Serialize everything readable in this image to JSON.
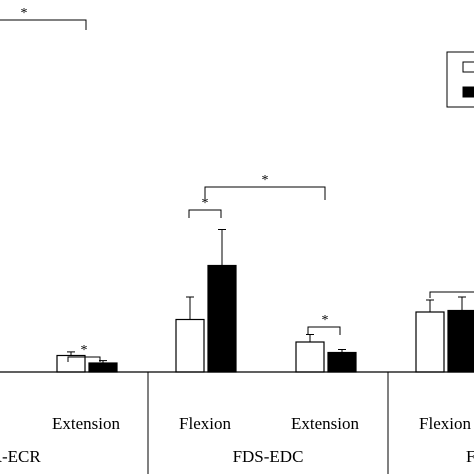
{
  "chart_data": {
    "type": "bar",
    "title": "",
    "xlabel": "",
    "ylabel": "",
    "ylim": [
      0,
      10
    ],
    "grid": false,
    "legend": {
      "placement": "top-right",
      "entries": [
        {
          "fill": "#ffffff",
          "label": ""
        },
        {
          "fill": "#000000",
          "label": ""
        }
      ]
    },
    "groups": [
      {
        "name": "CR-ECR",
        "categories": [
          {
            "name": "Extension",
            "values": [
              0.55,
              0.3
            ],
            "errors": [
              0.12,
              0.08
            ]
          }
        ]
      },
      {
        "name": "FDS-EDC",
        "categories": [
          {
            "name": "Flexion",
            "values": [
              1.75,
              3.55
            ],
            "errors": [
              0.75,
              1.2
            ]
          },
          {
            "name": "Extension",
            "values": [
              1.0,
              0.65
            ],
            "errors": [
              0.25,
              0.1
            ]
          }
        ]
      },
      {
        "name": "F",
        "categories": [
          {
            "name": "Flexion",
            "values": [
              2.0,
              2.05
            ],
            "errors": [
              0.4,
              0.45
            ]
          }
        ]
      }
    ],
    "series": [
      {
        "fill": "#ffffff",
        "values": [
          0.55,
          1.75,
          1.0,
          2.0
        ]
      },
      {
        "fill": "#000000",
        "values": [
          0.3,
          3.55,
          0.65,
          2.05
        ]
      }
    ],
    "annotations": [
      {
        "text": "*",
        "between": "CR-ECR top bracket"
      },
      {
        "text": "*",
        "between": "CR-ECR Extension white vs black"
      },
      {
        "text": "*",
        "between": "FDS-EDC Flexion white vs black"
      },
      {
        "text": "*",
        "between": "FDS-EDC Flexion vs Extension"
      },
      {
        "text": "*",
        "between": "FDS-EDC Extension white vs black"
      }
    ],
    "colors": {
      "open_bar": "#ffffff",
      "filled_bar": "#000000",
      "ink": "#000000"
    }
  }
}
